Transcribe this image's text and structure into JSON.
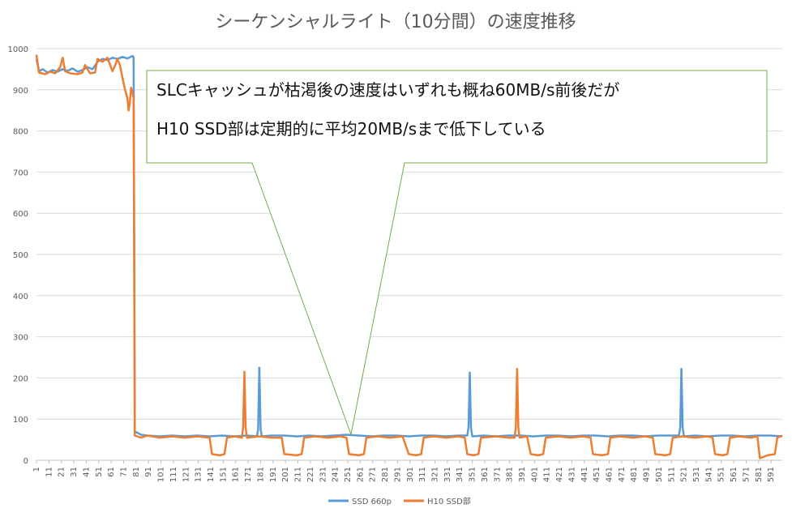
{
  "chart_data": {
    "type": "line",
    "title": "シーケンシャルライト（10分間）の速度推移",
    "xlabel": "",
    "ylabel": "",
    "ylim": [
      0,
      1000
    ],
    "yticks": [
      0,
      100,
      200,
      300,
      400,
      500,
      600,
      700,
      800,
      900,
      1000
    ],
    "x_range": [
      1,
      600
    ],
    "x_tick_labels": [
      "1",
      "11",
      "21",
      "31",
      "41",
      "51",
      "61",
      "71",
      "81",
      "91",
      "101",
      "111",
      "121",
      "131",
      "141",
      "151",
      "161",
      "171",
      "181",
      "191",
      "201",
      "211",
      "221",
      "231",
      "241",
      "251",
      "261",
      "271",
      "281",
      "291",
      "301",
      "311",
      "321",
      "331",
      "341",
      "351",
      "361",
      "371",
      "381",
      "391",
      "401",
      "411",
      "421",
      "431",
      "441",
      "451",
      "461",
      "471",
      "481",
      "491",
      "501",
      "511",
      "521",
      "531",
      "541",
      "551",
      "561",
      "571",
      "581",
      "591"
    ],
    "grid": true,
    "legend": "bottom",
    "colors": {
      "SSD 660p": "#5b9bd5",
      "H10 SSD部": "#ed7d31",
      "callout_border": "#70ad47"
    },
    "series": [
      {
        "name": "SSD 660p",
        "points": [
          [
            1,
            975
          ],
          [
            3,
            945
          ],
          [
            6,
            950
          ],
          [
            10,
            942
          ],
          [
            14,
            948
          ],
          [
            18,
            944
          ],
          [
            22,
            950
          ],
          [
            26,
            946
          ],
          [
            30,
            952
          ],
          [
            34,
            944
          ],
          [
            38,
            948
          ],
          [
            42,
            955
          ],
          [
            46,
            950
          ],
          [
            50,
            968
          ],
          [
            54,
            975
          ],
          [
            58,
            972
          ],
          [
            62,
            978
          ],
          [
            66,
            975
          ],
          [
            70,
            980
          ],
          [
            74,
            976
          ],
          [
            78,
            982
          ],
          [
            79,
            980
          ],
          [
            80,
            70
          ],
          [
            85,
            62
          ],
          [
            90,
            60
          ],
          [
            100,
            58
          ],
          [
            110,
            60
          ],
          [
            120,
            58
          ],
          [
            130,
            60
          ],
          [
            140,
            58
          ],
          [
            150,
            60
          ],
          [
            160,
            58
          ],
          [
            170,
            60
          ],
          [
            178,
            58
          ],
          [
            179,
            75
          ],
          [
            180,
            225
          ],
          [
            181,
            75
          ],
          [
            182,
            58
          ],
          [
            190,
            60
          ],
          [
            200,
            60
          ],
          [
            210,
            58
          ],
          [
            220,
            60
          ],
          [
            230,
            58
          ],
          [
            240,
            60
          ],
          [
            250,
            62
          ],
          [
            260,
            60
          ],
          [
            270,
            58
          ],
          [
            280,
            60
          ],
          [
            290,
            60
          ],
          [
            300,
            58
          ],
          [
            310,
            60
          ],
          [
            320,
            60
          ],
          [
            330,
            58
          ],
          [
            340,
            60
          ],
          [
            347,
            60
          ],
          [
            348,
            80
          ],
          [
            349,
            213
          ],
          [
            350,
            80
          ],
          [
            351,
            58
          ],
          [
            360,
            60
          ],
          [
            370,
            58
          ],
          [
            380,
            60
          ],
          [
            390,
            60
          ],
          [
            400,
            58
          ],
          [
            410,
            60
          ],
          [
            420,
            60
          ],
          [
            430,
            58
          ],
          [
            440,
            60
          ],
          [
            450,
            60
          ],
          [
            460,
            58
          ],
          [
            470,
            60
          ],
          [
            480,
            60
          ],
          [
            490,
            58
          ],
          [
            500,
            60
          ],
          [
            510,
            60
          ],
          [
            517,
            60
          ],
          [
            518,
            80
          ],
          [
            519,
            222
          ],
          [
            520,
            80
          ],
          [
            521,
            58
          ],
          [
            530,
            60
          ],
          [
            540,
            58
          ],
          [
            550,
            60
          ],
          [
            560,
            60
          ],
          [
            570,
            58
          ],
          [
            580,
            60
          ],
          [
            590,
            60
          ],
          [
            600,
            58
          ]
        ]
      },
      {
        "name": "H10 SSD部",
        "points": [
          [
            1,
            985
          ],
          [
            3,
            942
          ],
          [
            8,
            938
          ],
          [
            12,
            944
          ],
          [
            16,
            940
          ],
          [
            20,
            955
          ],
          [
            22,
            978
          ],
          [
            24,
            945
          ],
          [
            28,
            940
          ],
          [
            34,
            938
          ],
          [
            38,
            942
          ],
          [
            40,
            960
          ],
          [
            42,
            950
          ],
          [
            44,
            940
          ],
          [
            48,
            942
          ],
          [
            50,
            975
          ],
          [
            54,
            968
          ],
          [
            58,
            978
          ],
          [
            62,
            945
          ],
          [
            64,
            958
          ],
          [
            66,
            975
          ],
          [
            68,
            960
          ],
          [
            70,
            930
          ],
          [
            72,
            902
          ],
          [
            74,
            880
          ],
          [
            75,
            850
          ],
          [
            76,
            870
          ],
          [
            77,
            905
          ],
          [
            78,
            895
          ],
          [
            79,
            880
          ],
          [
            80,
            60
          ],
          [
            85,
            55
          ],
          [
            90,
            60
          ],
          [
            100,
            55
          ],
          [
            110,
            58
          ],
          [
            120,
            55
          ],
          [
            130,
            58
          ],
          [
            140,
            55
          ],
          [
            142,
            15
          ],
          [
            148,
            12
          ],
          [
            152,
            15
          ],
          [
            154,
            55
          ],
          [
            160,
            58
          ],
          [
            166,
            55
          ],
          [
            167,
            80
          ],
          [
            168,
            215
          ],
          [
            169,
            80
          ],
          [
            170,
            55
          ],
          [
            180,
            58
          ],
          [
            190,
            55
          ],
          [
            198,
            55
          ],
          [
            200,
            15
          ],
          [
            210,
            12
          ],
          [
            214,
            15
          ],
          [
            216,
            55
          ],
          [
            225,
            58
          ],
          [
            235,
            55
          ],
          [
            245,
            58
          ],
          [
            250,
            55
          ],
          [
            252,
            15
          ],
          [
            260,
            12
          ],
          [
            264,
            15
          ],
          [
            266,
            55
          ],
          [
            275,
            58
          ],
          [
            285,
            55
          ],
          [
            295,
            58
          ],
          [
            300,
            15
          ],
          [
            306,
            12
          ],
          [
            310,
            15
          ],
          [
            312,
            55
          ],
          [
            320,
            58
          ],
          [
            330,
            55
          ],
          [
            340,
            58
          ],
          [
            345,
            55
          ],
          [
            347,
            15
          ],
          [
            352,
            12
          ],
          [
            356,
            15
          ],
          [
            358,
            55
          ],
          [
            370,
            58
          ],
          [
            380,
            55
          ],
          [
            385,
            55
          ],
          [
            386,
            80
          ],
          [
            387,
            222
          ],
          [
            388,
            80
          ],
          [
            389,
            55
          ],
          [
            395,
            58
          ],
          [
            398,
            15
          ],
          [
            404,
            12
          ],
          [
            408,
            15
          ],
          [
            410,
            55
          ],
          [
            420,
            58
          ],
          [
            430,
            55
          ],
          [
            440,
            58
          ],
          [
            446,
            55
          ],
          [
            448,
            15
          ],
          [
            455,
            12
          ],
          [
            460,
            15
          ],
          [
            462,
            55
          ],
          [
            470,
            58
          ],
          [
            480,
            55
          ],
          [
            490,
            58
          ],
          [
            496,
            55
          ],
          [
            498,
            15
          ],
          [
            506,
            12
          ],
          [
            510,
            15
          ],
          [
            512,
            55
          ],
          [
            520,
            58
          ],
          [
            530,
            55
          ],
          [
            540,
            58
          ],
          [
            544,
            55
          ],
          [
            546,
            15
          ],
          [
            552,
            12
          ],
          [
            556,
            15
          ],
          [
            558,
            55
          ],
          [
            565,
            58
          ],
          [
            575,
            55
          ],
          [
            580,
            58
          ],
          [
            582,
            5
          ],
          [
            588,
            12
          ],
          [
            594,
            15
          ],
          [
            596,
            55
          ],
          [
            600,
            60
          ]
        ]
      }
    ],
    "annotation": {
      "lines": [
        "SLCキャッシュが枯渇後の速度はいずれも概ね60MB/s前後だが",
        "H10 SSD部は定期的に平均20MB/sまで低下している"
      ]
    }
  }
}
